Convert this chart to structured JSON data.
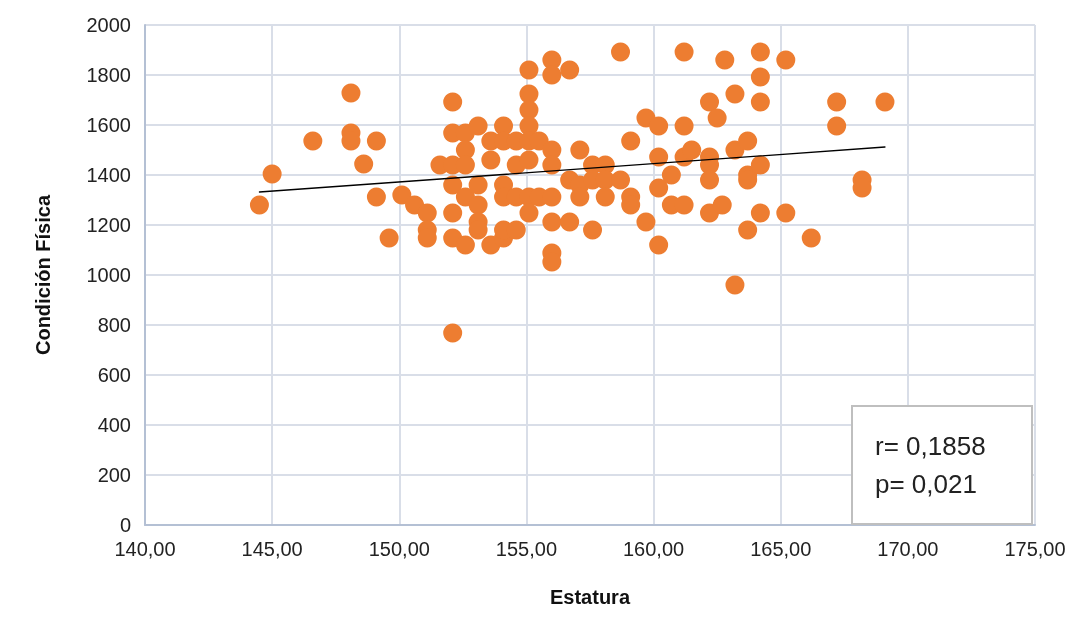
{
  "chart_data": {
    "type": "scatter",
    "xlabel": "Estatura",
    "ylabel": "Condición Física",
    "xlim": [
      140,
      175
    ],
    "xticks": [
      {
        "value": 140,
        "label": "140,00"
      },
      {
        "value": 145,
        "label": "145,00"
      },
      {
        "value": 150,
        "label": "150,00"
      },
      {
        "value": 155,
        "label": "155,00"
      },
      {
        "value": 160,
        "label": "160,00"
      },
      {
        "value": 165,
        "label": "165,00"
      },
      {
        "value": 170,
        "label": "170,00"
      },
      {
        "value": 175,
        "label": "175,00"
      }
    ],
    "ylim": [
      0,
      2000
    ],
    "yticks": [
      0,
      200,
      400,
      600,
      800,
      1000,
      1200,
      1400,
      1600,
      1800,
      2000
    ],
    "grid": true,
    "marker": "circle",
    "annotations": [
      "r= 0,1858",
      "p= 0,021"
    ],
    "series": [
      {
        "type": "scatter",
        "color": "#ed7d31",
        "x": [
          144.5,
          145.0,
          146.6,
          148.1,
          148.1,
          148.1,
          148.6,
          149.1,
          149.1,
          149.6,
          150.1,
          150.6,
          151.1,
          151.1,
          151.1,
          151.6,
          152.1,
          152.1,
          152.1,
          152.1,
          152.1,
          152.1,
          152.1,
          152.6,
          152.6,
          152.6,
          152.6,
          152.6,
          153.1,
          153.1,
          153.1,
          153.1,
          153.1,
          153.6,
          153.6,
          153.6,
          154.1,
          154.1,
          154.1,
          154.1,
          154.1,
          154.1,
          154.6,
          154.6,
          154.6,
          154.6,
          155.1,
          155.1,
          155.1,
          155.1,
          155.1,
          155.1,
          155.1,
          155.1,
          155.5,
          155.5,
          156.0,
          156.0,
          156.0,
          156.0,
          156.0,
          156.0,
          156.0,
          156.0,
          156.7,
          156.7,
          156.7,
          157.1,
          157.1,
          157.1,
          157.6,
          157.6,
          157.6,
          158.1,
          158.1,
          158.1,
          158.7,
          158.7,
          159.1,
          159.1,
          159.1,
          159.7,
          159.7,
          160.2,
          160.2,
          160.2,
          160.2,
          160.7,
          160.7,
          161.2,
          161.2,
          161.2,
          161.2,
          161.5,
          162.2,
          162.2,
          162.2,
          162.2,
          162.2,
          162.5,
          162.7,
          162.8,
          163.2,
          163.2,
          163.2,
          163.7,
          163.7,
          163.7,
          163.7,
          164.2,
          164.2,
          164.2,
          164.2,
          164.2,
          165.2,
          165.2,
          166.2,
          167.2,
          167.2,
          168.2,
          168.2,
          169.1
        ],
        "values": [
          1280,
          1404,
          1536,
          1728,
          1568,
          1536,
          1444,
          1536,
          1312,
          1148,
          1320,
          1280,
          1248,
          1180,
          1148,
          1440,
          1692,
          1568,
          1440,
          1360,
          1248,
          1148,
          768,
          1568,
          1500,
          1440,
          1312,
          1120,
          1596,
          1360,
          1280,
          1212,
          1180,
          1536,
          1460,
          1120,
          1596,
          1536,
          1360,
          1312,
          1148,
          1180,
          1536,
          1440,
          1312,
          1180,
          1820,
          1724,
          1660,
          1596,
          1536,
          1460,
          1312,
          1248,
          1536,
          1312,
          1860,
          1800,
          1500,
          1440,
          1312,
          1212,
          1088,
          1052,
          1820,
          1380,
          1212,
          1500,
          1360,
          1312,
          1180,
          1440,
          1380,
          1440,
          1380,
          1312,
          1892,
          1380,
          1536,
          1312,
          1280,
          1628,
          1212,
          1596,
          1472,
          1348,
          1120,
          1400,
          1280,
          1892,
          1596,
          1472,
          1280,
          1500,
          1692,
          1472,
          1440,
          1380,
          1248,
          1628,
          1280,
          1860,
          1724,
          1500,
          960,
          1536,
          1400,
          1380,
          1180,
          1892,
          1792,
          1692,
          1440,
          1248,
          1860,
          1248,
          1148,
          1692,
          1596,
          1380,
          1348,
          1692
        ]
      },
      {
        "type": "line",
        "color": "#000000",
        "marker": "none",
        "x": [
          144.5,
          169.1
        ],
        "values": [
          1332,
          1512
        ]
      }
    ]
  }
}
